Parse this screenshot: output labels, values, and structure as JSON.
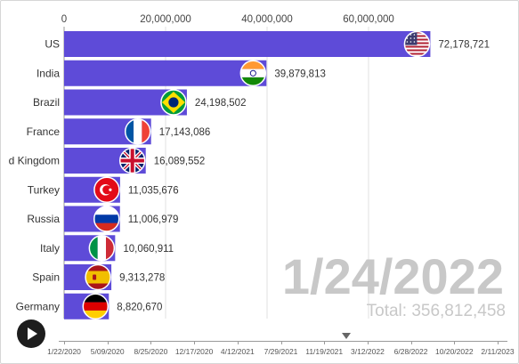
{
  "chart_data": {
    "type": "bar",
    "orientation": "horizontal",
    "categories": [
      "US",
      "India",
      "Brazil",
      "France",
      "d Kingdom",
      "Turkey",
      "Russia",
      "Italy",
      "Spain",
      "Germany"
    ],
    "values": [
      72178721,
      39879813,
      24198502,
      17143086,
      16089552,
      11035676,
      11006979,
      10060911,
      9313278,
      8820670
    ],
    "value_labels": [
      "72,178,721",
      "39,879,813",
      "24,198,502",
      "17,143,086",
      "16,089,552",
      "11,035,676",
      "11,006,979",
      "10,060,911",
      "9,313,278",
      "8,820,670"
    ],
    "flag_icons": [
      "us-flag-icon",
      "india-flag-icon",
      "brazil-flag-icon",
      "france-flag-icon",
      "united-kingdom-flag-icon",
      "turkey-flag-icon",
      "russia-flag-icon",
      "italy-flag-icon",
      "spain-flag-icon",
      "germany-flag-icon"
    ],
    "x_ticks": [
      0,
      20000000,
      40000000,
      60000000
    ],
    "x_tick_labels": [
      "0",
      "20,000,000",
      "40,000,000",
      "60,000,000"
    ],
    "xlim": [
      0,
      76000000
    ],
    "grid": true,
    "bar_color": "#5e4bd8",
    "title": "",
    "xlabel": "",
    "ylabel": ""
  },
  "overlay": {
    "date": "1/24/2022",
    "total": "Total: 356,812,458"
  },
  "timeline": {
    "labels": [
      "1/22/2020",
      "5/09/2020",
      "8/25/2020",
      "12/17/2020",
      "4/12/2021",
      "7/29/2021",
      "11/19/2021",
      "3/12/2022",
      "6/28/2022",
      "10/20/2022",
      "2/11/2023"
    ],
    "current_position": 0.64
  },
  "colors": {
    "bar": "#5e4bd8",
    "overlay_text": "#c8c8c8",
    "play_button": "#1d1d1d"
  },
  "icons": {
    "play": "play-icon"
  }
}
